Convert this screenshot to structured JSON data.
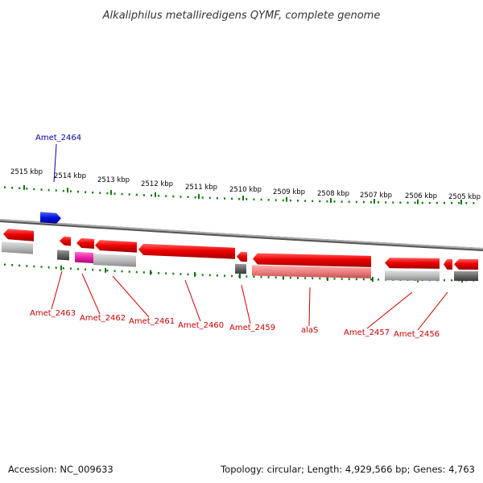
{
  "title": "Alkaliphilus metalliredigens QYMF, complete genome",
  "footer": {
    "accession": "Accession: NC_009633",
    "topology": "Topology: circular; Length: 4,929,566 bp; Genes: 4,763"
  },
  "colors": {
    "gene_red": "#ee0000",
    "gene_red_light": "#f07f7f",
    "gene_pink": "#ee22aa",
    "gene_blue": "#0010dd",
    "gene_gray_dark": "#666666",
    "gene_gray_light": "#bbbbbb",
    "tick_green": "#117711",
    "label_red": "#cc0000",
    "label_blue": "#0000aa",
    "backbone": "#888888"
  },
  "ticks": [
    {
      "label": "2515 kbp"
    },
    {
      "label": "2514 kbp"
    },
    {
      "label": "2513 kbp"
    },
    {
      "label": "2512 kbp"
    },
    {
      "label": "2511 kbp"
    },
    {
      "label": "2510 kbp"
    },
    {
      "label": "2509 kbp"
    },
    {
      "label": "2508 kbp"
    },
    {
      "label": "2507 kbp"
    },
    {
      "label": "2506 kbp"
    },
    {
      "label": "2505 kbp"
    }
  ],
  "genes": [
    {
      "label": "Amet_2464",
      "kind": "blue"
    },
    {
      "label": "Amet_2463",
      "kind": "red"
    },
    {
      "label": "Amet_2462",
      "kind": "red"
    },
    {
      "label": "Amet_2461",
      "kind": "red"
    },
    {
      "label": "Amet_2460",
      "kind": "red"
    },
    {
      "label": "Amet_2459",
      "kind": "red"
    },
    {
      "label": "alaS",
      "kind": "red"
    },
    {
      "label": "Amet_2457",
      "kind": "red"
    },
    {
      "label": "Amet_2456",
      "kind": "red"
    }
  ]
}
